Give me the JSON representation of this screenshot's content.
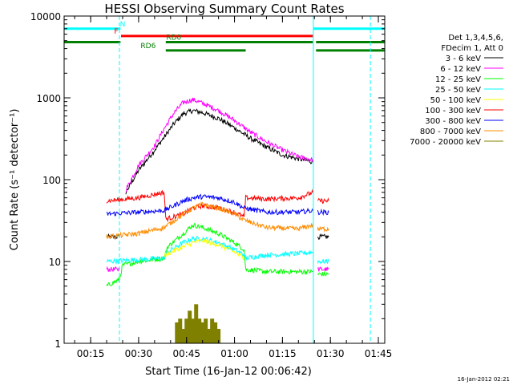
{
  "chart_data": {
    "type": "line",
    "title": "HESSI Observing Summary Count Rates",
    "xlabel": "Start Time (16-Jan-12 00:06:42)",
    "ylabel": "Count Rate (s⁻¹ detector⁻¹)",
    "y_scale": "log",
    "ylim": [
      1,
      10000
    ],
    "xlim": [
      "00:06:42",
      "01:47:00"
    ],
    "x_ticks": [
      "00:15",
      "00:30",
      "00:45",
      "01:00",
      "01:15",
      "01:30",
      "01:45"
    ],
    "y_ticks": [
      "1",
      "10",
      "100",
      "1000",
      "10000"
    ],
    "grid": false,
    "legend_position": "right",
    "legend_header": [
      "Det 1,3,4,5,6,",
      "FDecim 1, Att 0"
    ],
    "footer_date": "16-Jan-2012 02:21",
    "series": [
      {
        "name": "3 - 6 keV",
        "color": "#000000",
        "segments": [
          {
            "x": [
              "00:20:00",
              "00:24:00"
            ],
            "y": [
              20,
              20
            ]
          },
          {
            "x": [
              "00:26:00",
              "00:30:00",
              "00:35:00",
              "00:38:00",
              "00:41:00",
              "00:44:00",
              "00:47:00",
              "00:50:00",
              "00:55:00",
              "01:00:00",
              "01:05:00",
              "01:10:00",
              "01:15:00",
              "01:20:00",
              "01:24:30"
            ],
            "y": [
              70,
              130,
              230,
              330,
              480,
              640,
              700,
              660,
              560,
              430,
              320,
              250,
              200,
              180,
              165
            ]
          },
          {
            "x": [
              "01:26:00",
              "01:29:30"
            ],
            "y": [
              20,
              20
            ]
          }
        ]
      },
      {
        "name": "6 - 12 keV",
        "color": "#ff00ff",
        "segments": [
          {
            "x": [
              "00:20:00",
              "00:24:00"
            ],
            "y": [
              8,
              8
            ]
          },
          {
            "x": [
              "00:26:00",
              "00:30:00",
              "00:35:00",
              "00:38:00",
              "00:41:00",
              "00:44:00",
              "00:47:00",
              "00:50:00",
              "00:55:00",
              "01:00:00",
              "01:05:00",
              "01:10:00",
              "01:15:00",
              "01:20:00",
              "01:24:30"
            ],
            "y": [
              75,
              150,
              260,
              420,
              650,
              880,
              950,
              860,
              700,
              530,
              380,
              290,
              230,
              190,
              175
            ]
          },
          {
            "x": [
              "01:26:00",
              "01:29:30"
            ],
            "y": [
              8,
              8
            ]
          }
        ]
      },
      {
        "name": "12 - 25 keV",
        "color": "#00ff00",
        "segments": [
          {
            "x": [
              "00:20:00",
              "00:22:00",
              "00:24:00",
              "00:25:00",
              "00:30:00",
              "00:38:00",
              "00:39:00",
              "00:44:00",
              "00:47:00",
              "00:50:00",
              "00:55:00",
              "01:00:00",
              "01:03:00",
              "01:03:30",
              "01:10:00",
              "01:20:00",
              "01:24:30"
            ],
            "y": [
              5,
              5.5,
              6,
              9,
              10,
              11,
              15,
              22,
              28,
              26,
              22,
              17,
              14,
              8,
              7.5,
              7.5,
              7.5
            ]
          },
          {
            "x": [
              "01:26:00",
              "01:29:30"
            ],
            "y": [
              7,
              7
            ]
          }
        ]
      },
      {
        "name": "25 - 50 keV",
        "color": "#00ffff",
        "segments": [
          {
            "x": [
              "00:20:00",
              "00:30:00",
              "00:38:00",
              "00:39:00",
              "00:44:00",
              "00:47:00",
              "00:50:00",
              "00:55:00",
              "01:00:00",
              "01:03:00",
              "01:03:30",
              "01:10:00",
              "01:20:00",
              "01:24:30"
            ],
            "y": [
              10,
              10.5,
              11,
              13,
              17,
              19,
              19,
              17,
              14,
              12,
              11,
              12,
              12.5,
              13
            ]
          },
          {
            "x": [
              "01:26:00",
              "01:29:30"
            ],
            "y": [
              10,
              10
            ]
          }
        ]
      },
      {
        "name": "50 - 100 keV",
        "color": "#ffff00",
        "segments": [
          {
            "x": [
              "00:38:00",
              "00:44:00",
              "00:47:00",
              "00:50:00",
              "00:55:00",
              "01:00:00",
              "01:03:00"
            ],
            "y": [
              12,
              15,
              17,
              18,
              16,
              13,
              11
            ]
          }
        ]
      },
      {
        "name": "100 - 300 keV",
        "color": "#ff0000",
        "segments": [
          {
            "x": [
              "00:20:00",
              "00:30:00",
              "00:38:00",
              "00:38:30",
              "00:44:00",
              "00:47:00",
              "00:50:00",
              "00:55:00",
              "01:00:00",
              "01:03:00",
              "01:03:30",
              "01:10:00",
              "01:20:00",
              "01:24:30"
            ],
            "y": [
              55,
              60,
              70,
              33,
              38,
              45,
              48,
              45,
              40,
              35,
              60,
              58,
              60,
              70
            ]
          },
          {
            "x": [
              "01:26:00",
              "01:29:30"
            ],
            "y": [
              55,
              55
            ]
          }
        ]
      },
      {
        "name": "300 - 800 keV",
        "color": "#0000ff",
        "segments": [
          {
            "x": [
              "00:20:00",
              "00:30:00",
              "00:38:00",
              "00:44:00",
              "00:47:00",
              "00:50:00",
              "00:55:00",
              "01:00:00",
              "01:03:00",
              "01:10:00",
              "01:20:00",
              "01:24:30"
            ],
            "y": [
              38,
              40,
              42,
              55,
              60,
              62,
              60,
              53,
              45,
              40,
              40,
              42
            ]
          },
          {
            "x": [
              "01:26:00",
              "01:29:30"
            ],
            "y": [
              40,
              40
            ]
          }
        ]
      },
      {
        "name": "800 - 7000 keV",
        "color": "#ff8c00",
        "segments": [
          {
            "x": [
              "00:20:00",
              "00:30:00",
              "00:38:00",
              "00:44:00",
              "00:47:00",
              "00:50:00",
              "00:55:00",
              "01:00:00",
              "01:03:00",
              "01:10:00",
              "01:20:00",
              "01:24:30"
            ],
            "y": [
              20,
              22,
              26,
              38,
              45,
              50,
              45,
              38,
              32,
              26,
              25,
              28
            ]
          },
          {
            "x": [
              "01:26:00",
              "01:29:30"
            ],
            "y": [
              25,
              25
            ]
          }
        ]
      },
      {
        "name": "7000 - 20000 keV",
        "color": "#808000",
        "segments": [
          {
            "x": [
              "00:42:00",
              "00:43:00",
              "00:44:00",
              "00:45:00",
              "00:46:00",
              "00:47:00",
              "00:48:00",
              "00:49:00",
              "00:50:00",
              "00:51:00",
              "00:52:00",
              "00:53:00",
              "00:54:00",
              "00:55:00"
            ],
            "y": [
              1.8,
              2,
              1.5,
              2,
              2.5,
              2,
              3,
              2,
              1.8,
              2,
              1.5,
              2,
              1.8,
              1.5
            ]
          }
        ]
      }
    ],
    "flags": [
      {
        "label": "N",
        "color": "#00ffff",
        "y": 7000,
        "intervals": [
          [
            "00:06:42",
            "00:24:20"
          ],
          [
            "01:24:40",
            "01:47:00"
          ]
        ],
        "label_time": "00:25:00"
      },
      {
        "label": "F",
        "color": "#ff0000",
        "y": 5700,
        "intervals": [
          [
            "00:24:30",
            "01:24:30"
          ]
        ],
        "label_time": "00:23:00"
      },
      {
        "label": "RD0",
        "color": "#008000",
        "y": 4800,
        "intervals": [
          [
            "00:06:42",
            "00:24:20"
          ],
          [
            "00:38:30",
            "01:24:30"
          ],
          [
            "01:25:30",
            "01:47:00"
          ]
        ],
        "label_time": "00:41:00"
      },
      {
        "label": "RD6",
        "color": "#008000",
        "y": 3800,
        "intervals": [
          [
            "00:38:30",
            "01:03:30"
          ],
          [
            "01:25:30",
            "01:47:00"
          ]
        ],
        "label_time": "00:33:00"
      }
    ],
    "vertical_markers": [
      {
        "color": "#00ffff",
        "style": "dashed",
        "time": "00:24:00"
      },
      {
        "color": "#00ffff",
        "style": "solid",
        "time": "01:24:40"
      },
      {
        "color": "#00ffff",
        "style": "dashed",
        "time": "01:42:30"
      },
      {
        "color": "#00ffff",
        "style": "solid",
        "time": "00:06:42"
      }
    ]
  }
}
